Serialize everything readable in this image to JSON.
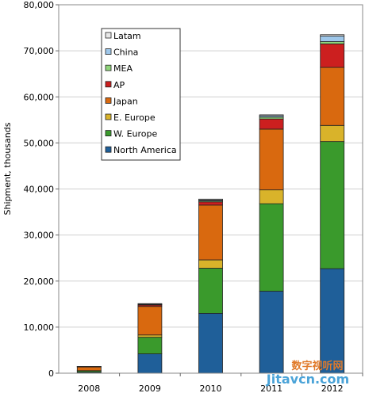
{
  "chart_data": {
    "type": "bar",
    "stacked": true,
    "categories": [
      "2008",
      "2009",
      "2010",
      "2011",
      "2012"
    ],
    "ylabel": "Shipment, thousands",
    "ylim": [
      0,
      80000
    ],
    "yticks": [
      "0",
      "10,000",
      "20,000",
      "30,000",
      "40,000",
      "50,000",
      "60,000",
      "70,000",
      "80,000"
    ],
    "grid": true,
    "legend_position": "top-left",
    "series": [
      {
        "name": "North America",
        "color": "#1f5f99",
        "values": [
          200,
          4200,
          13000,
          17800,
          22700
        ]
      },
      {
        "name": "W. Europe",
        "color": "#3a9a2c",
        "values": [
          300,
          3600,
          9800,
          19000,
          27600
        ]
      },
      {
        "name": "E. Europe",
        "color": "#d9b32a",
        "values": [
          50,
          500,
          1800,
          3000,
          3500
        ]
      },
      {
        "name": "Japan",
        "color": "#d9690f",
        "values": [
          800,
          6200,
          11900,
          13200,
          12600
        ]
      },
      {
        "name": "AP",
        "color": "#cc1f1f",
        "values": [
          50,
          300,
          700,
          2200,
          5100
        ]
      },
      {
        "name": "MEA",
        "color": "#8fd47a",
        "values": [
          20,
          100,
          200,
          400,
          500
        ]
      },
      {
        "name": "China",
        "color": "#9ec7ea",
        "values": [
          20,
          100,
          200,
          300,
          1200
        ]
      },
      {
        "name": "Latam",
        "color": "#e8e8e8",
        "values": [
          20,
          100,
          200,
          200,
          300
        ]
      }
    ],
    "legend_order": [
      "Latam",
      "China",
      "MEA",
      "AP",
      "Japan",
      "E. Europe",
      "W. Europe",
      "North America"
    ]
  },
  "watermark": {
    "line1": "数字视听网",
    "line2": "Jitavcn.com"
  }
}
